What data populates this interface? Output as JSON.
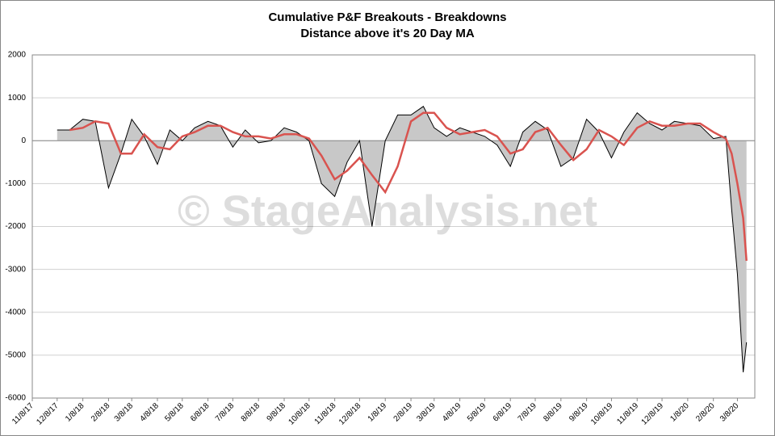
{
  "chart_data": {
    "type": "area-line",
    "title": "Cumulative P&F Breakouts - Breakdowns",
    "subtitle": "Distance above it's 20 Day MA",
    "watermark": "© StageAnalysis.net",
    "x": [
      "12/8/17",
      "12/23/17",
      "1/8/18",
      "1/23/18",
      "2/8/18",
      "2/23/18",
      "3/8/18",
      "3/23/18",
      "4/8/18",
      "4/23/18",
      "5/8/18",
      "5/23/18",
      "6/8/18",
      "6/23/18",
      "7/8/18",
      "7/23/18",
      "8/8/18",
      "8/23/18",
      "9/8/18",
      "9/23/18",
      "10/8/18",
      "10/23/18",
      "11/8/18",
      "11/23/18",
      "12/8/18",
      "12/23/18",
      "1/8/19",
      "1/23/19",
      "2/8/19",
      "2/23/19",
      "3/8/19",
      "3/23/19",
      "4/8/19",
      "4/23/19",
      "5/8/19",
      "5/23/19",
      "6/8/19",
      "6/23/19",
      "7/8/19",
      "7/23/19",
      "8/8/19",
      "8/23/19",
      "9/8/19",
      "9/23/19",
      "10/8/19",
      "10/23/19",
      "11/8/19",
      "11/23/19",
      "12/8/19",
      "12/23/19",
      "1/8/20",
      "1/23/20",
      "2/8/20",
      "2/23/20",
      "3/1/20",
      "3/8/20",
      "3/15/20",
      "3/19/20"
    ],
    "series": [
      {
        "color": "#000000",
        "fill": "#c8c8c8",
        "values": [
          250,
          250,
          500,
          450,
          -1100,
          -300,
          500,
          100,
          -550,
          250,
          0,
          300,
          450,
          350,
          -150,
          250,
          -50,
          0,
          300,
          200,
          0,
          -1000,
          -1300,
          -500,
          0,
          -2000,
          0,
          600,
          600,
          800,
          300,
          100,
          300,
          200,
          100,
          -100,
          -600,
          200,
          450,
          250,
          -600,
          -400,
          500,
          200,
          -400,
          200,
          650,
          400,
          250,
          450,
          400,
          350,
          50,
          100,
          -1600,
          -3100,
          -5400,
          -4700
        ]
      },
      {
        "color": "#d9534f",
        "values": [
          null,
          250,
          300,
          450,
          400,
          -300,
          -300,
          150,
          -150,
          -200,
          100,
          200,
          350,
          350,
          200,
          100,
          100,
          50,
          150,
          150,
          50,
          -350,
          -900,
          -700,
          -400,
          -800,
          -1200,
          -600,
          450,
          650,
          650,
          300,
          150,
          200,
          250,
          100,
          -300,
          -200,
          200,
          300,
          -100,
          -450,
          -200,
          250,
          100,
          -100,
          300,
          450,
          350,
          350,
          400,
          400,
          200,
          50,
          -300,
          -1000,
          -1800,
          -2800
        ]
      }
    ],
    "xlim": [
      "11/8/17",
      "3/29/20"
    ],
    "xticks": [
      "11/8/17",
      "12/8/17",
      "1/8/18",
      "2/8/18",
      "3/8/18",
      "4/8/18",
      "5/8/18",
      "6/8/18",
      "7/8/18",
      "8/8/18",
      "9/8/18",
      "10/8/18",
      "11/8/18",
      "12/8/18",
      "1/8/19",
      "2/8/19",
      "3/8/19",
      "4/8/19",
      "5/8/19",
      "6/8/19",
      "7/8/19",
      "8/8/19",
      "9/8/19",
      "10/8/19",
      "11/8/19",
      "12/8/19",
      "1/8/20",
      "2/8/20",
      "3/8/20"
    ],
    "ylim": [
      -6000,
      2000
    ],
    "yticks": [
      -6000,
      -5000,
      -4000,
      -3000,
      -2000,
      -1000,
      0,
      1000,
      2000
    ],
    "grid": true
  }
}
